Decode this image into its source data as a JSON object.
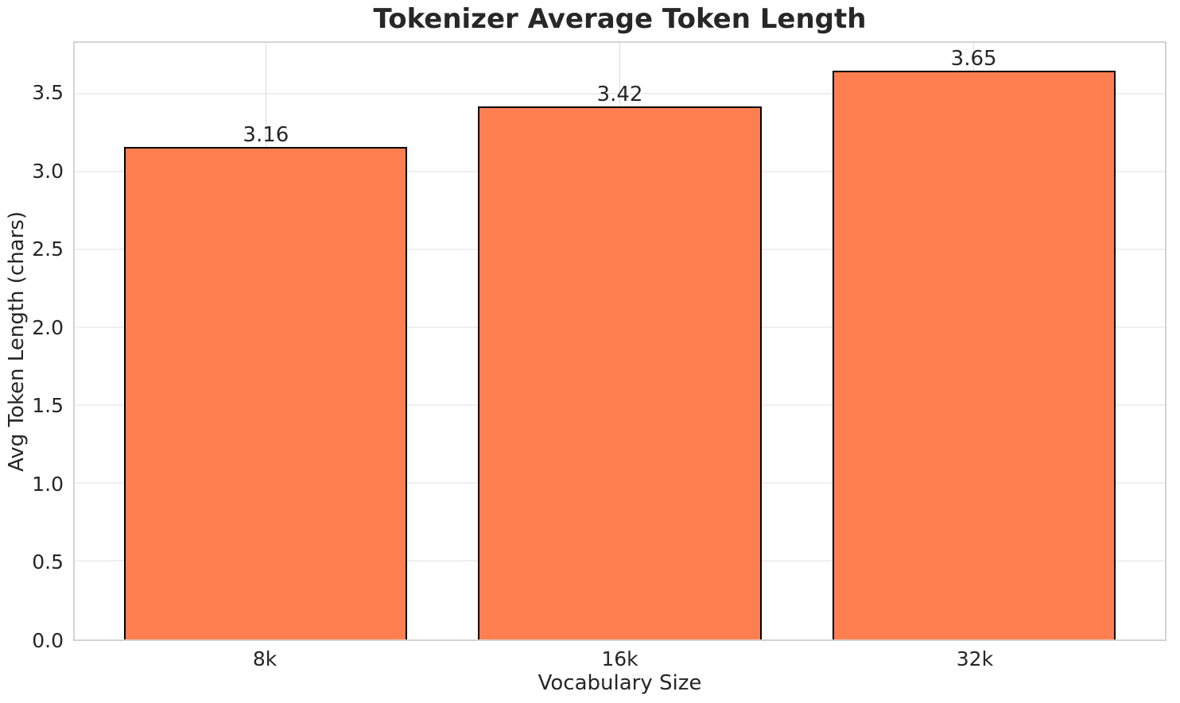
{
  "chart_data": {
    "type": "bar",
    "title": "Tokenizer Average Token Length",
    "xlabel": "Vocabulary Size",
    "ylabel": "Avg Token Length (chars)",
    "categories": [
      "8k",
      "16k",
      "32k"
    ],
    "values": [
      3.16,
      3.42,
      3.65
    ],
    "bar_value_labels": [
      "3.16",
      "3.42",
      "3.65"
    ],
    "yticks": [
      0.0,
      0.5,
      1.0,
      1.5,
      2.0,
      2.5,
      3.0,
      3.5
    ],
    "ytick_labels": [
      "0.0",
      "0.5",
      "1.0",
      "1.5",
      "2.0",
      "2.5",
      "3.0",
      "3.5"
    ],
    "ylim": [
      0,
      3.83
    ],
    "grid": true,
    "legend_position": "none",
    "colors": {
      "bar_fill": "#FF7F50",
      "bar_edge": "#000000",
      "grid_h": "#efefef",
      "grid_v": "#dcdcdc",
      "spine": "#d3d3d3",
      "text": "#262626",
      "background": "#ffffff"
    }
  }
}
